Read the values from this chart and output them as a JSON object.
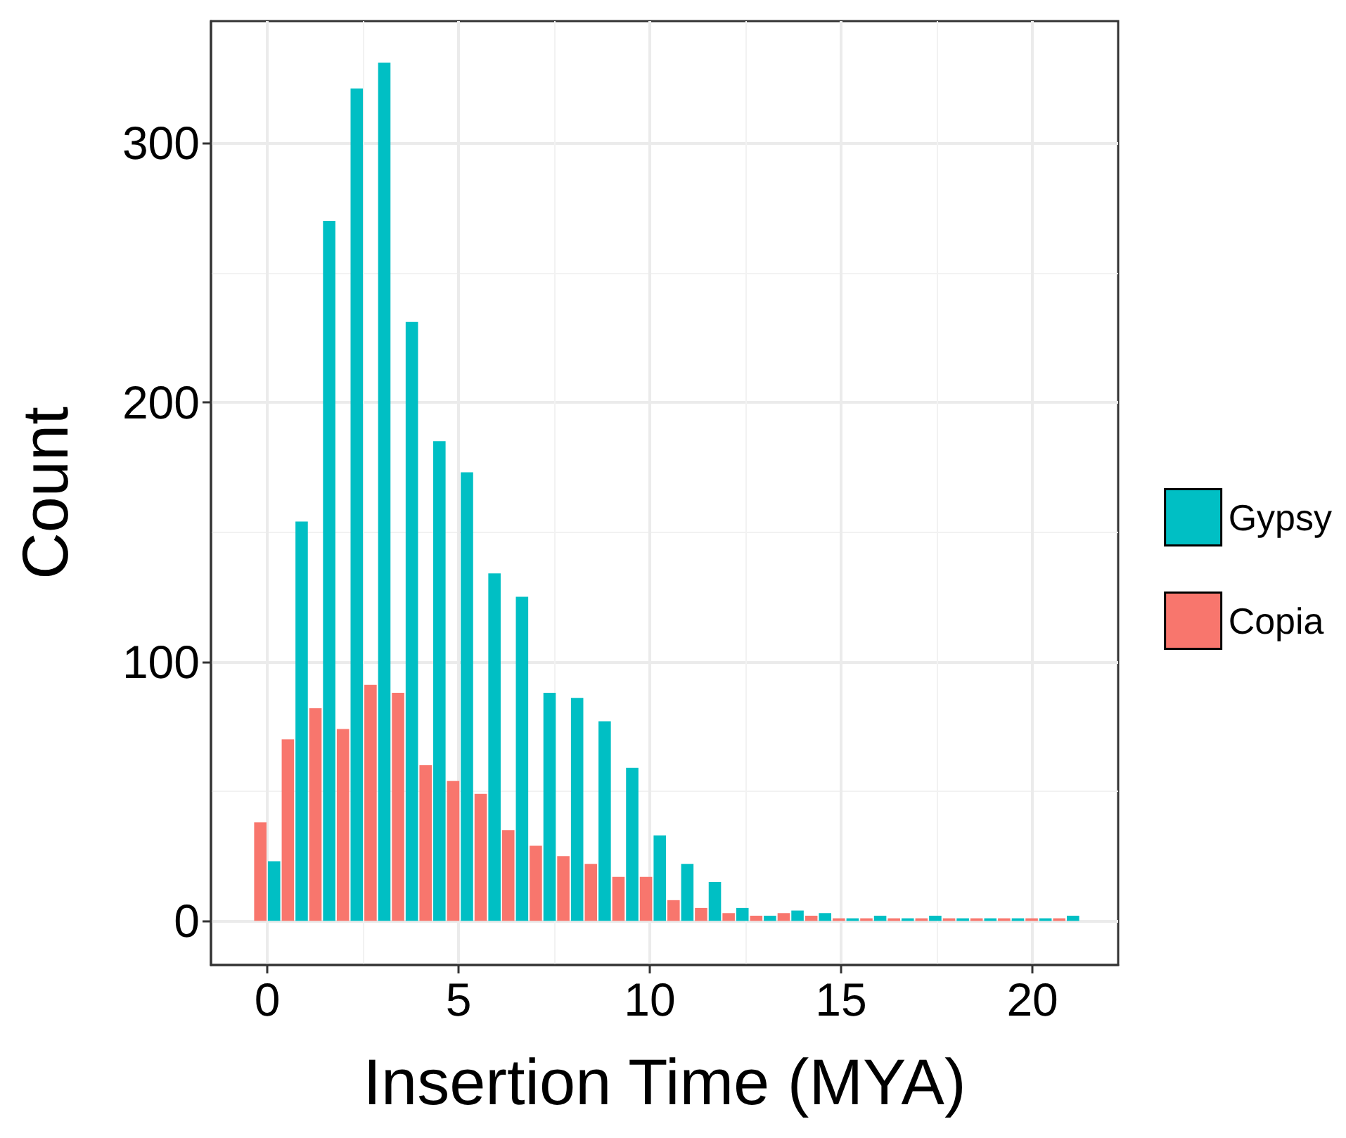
{
  "chart_data": {
    "type": "histogram",
    "xlabel": "Insertion Time (MYA)",
    "ylabel": "Count",
    "bins": [
      -0.36,
      0.36,
      1.08,
      1.8,
      2.52,
      3.24,
      3.96,
      4.68,
      5.4,
      6.12,
      6.84,
      7.56,
      8.28,
      9,
      9.72,
      10.44,
      11.16,
      11.88,
      12.6,
      13.32,
      14.04,
      14.76,
      15.48,
      16.2,
      16.92,
      17.64,
      18.36,
      19.08,
      19.8,
      20.52,
      21.24
    ],
    "series": [
      {
        "name": "Gypsy",
        "color": "#00bfc4",
        "values": [
          23,
          154,
          270,
          321,
          331,
          231,
          185,
          173,
          134,
          125,
          88,
          86,
          77,
          59,
          33,
          22,
          15,
          5,
          2,
          4,
          3,
          1,
          2,
          1,
          2,
          1,
          1,
          1,
          1,
          2
        ]
      },
      {
        "name": "Copia",
        "color": "#f8766d",
        "values": [
          38,
          70,
          82,
          74,
          91,
          88,
          60,
          54,
          49,
          35,
          29,
          25,
          22,
          17,
          17,
          8,
          5,
          3,
          2,
          3,
          2,
          1,
          1,
          1,
          1,
          1,
          1,
          1,
          1,
          1
        ]
      }
    ],
    "xlim": [
      -1.47,
      22.24
    ],
    "ylim": [
      -17,
      347
    ],
    "xticks": [
      0,
      5,
      10,
      15,
      20
    ],
    "yticks": [
      0,
      100,
      200,
      300
    ],
    "grid": true,
    "legend": "right"
  }
}
